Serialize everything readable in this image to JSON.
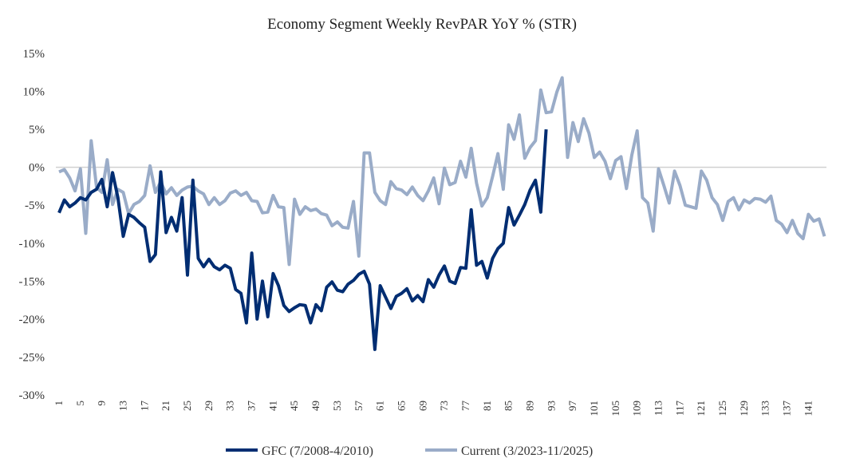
{
  "chart_data": {
    "type": "line",
    "title": "Economy Segment Weekly RevPAR YoY % (STR)",
    "xlabel": "",
    "ylabel": "",
    "ylim": [
      -30,
      15
    ],
    "yticks": [
      15,
      10,
      5,
      0,
      -5,
      -10,
      -15,
      -20,
      -25,
      -30
    ],
    "ytick_labels": [
      "15%",
      "10%",
      "5%",
      "0%",
      "-5%",
      "-10%",
      "-15%",
      "-20%",
      "-25%",
      "-30%"
    ],
    "x_range": [
      1,
      144
    ],
    "xtick_step": 4,
    "grid": "zero line only",
    "legend_position": "bottom",
    "series": [
      {
        "name": "GFC (7/2008-4/2010)",
        "color": "#002D72",
        "values": [
          -6.0,
          -4.3,
          -5.2,
          -4.7,
          -4.0,
          -4.3,
          -3.3,
          -2.9,
          -1.6,
          -5.2,
          -0.7,
          -4.0,
          -9.1,
          -6.2,
          -6.6,
          -7.3,
          -7.9,
          -12.4,
          -11.5,
          -0.6,
          -8.6,
          -6.6,
          -8.4,
          -4.0,
          -14.2,
          -1.7,
          -12.0,
          -13.1,
          -12.1,
          -13.1,
          -13.5,
          -12.9,
          -13.3,
          -16.1,
          -16.6,
          -20.5,
          -11.3,
          -20.0,
          -15.0,
          -19.7,
          -14.0,
          -15.6,
          -18.2,
          -19.0,
          -18.5,
          -18.1,
          -18.2,
          -20.5,
          -18.1,
          -18.9,
          -15.8,
          -15.1,
          -16.2,
          -16.4,
          -15.4,
          -14.9,
          -14.1,
          -13.7,
          -15.4,
          -24.0,
          -15.6,
          -17.1,
          -18.6,
          -17.0,
          -16.6,
          -16.0,
          -17.6,
          -16.9,
          -17.7,
          -14.8,
          -15.8,
          -14.2,
          -13.0,
          -15.0,
          -15.3,
          -13.2,
          -13.3,
          -5.6,
          -12.9,
          -12.4,
          -14.6,
          -12.0,
          -10.7,
          -10.0,
          -5.3,
          -7.6,
          -6.3,
          -4.9,
          -3.0,
          -1.7,
          -5.9,
          5.0
        ]
      },
      {
        "name": "Current (3/2023-11/2025)",
        "color": "#9AACC8",
        "values": [
          -0.6,
          -0.3,
          -1.4,
          -3.1,
          -0.2,
          -8.7,
          3.5,
          -2.6,
          -3.3,
          1.0,
          -4.9,
          -2.9,
          -3.3,
          -6.1,
          -4.9,
          -4.5,
          -3.7,
          0.2,
          -3.3,
          -1.9,
          -3.5,
          -2.7,
          -3.7,
          -3.0,
          -2.6,
          -2.5,
          -3.1,
          -3.5,
          -4.9,
          -4.0,
          -4.9,
          -4.4,
          -3.4,
          -3.1,
          -3.7,
          -3.3,
          -4.4,
          -4.5,
          -6.0,
          -5.9,
          -3.7,
          -5.2,
          -5.3,
          -12.8,
          -4.2,
          -6.2,
          -5.2,
          -5.7,
          -5.5,
          -6.1,
          -6.3,
          -7.7,
          -7.2,
          -7.9,
          -8.0,
          -4.5,
          -11.7,
          1.9,
          1.9,
          -3.3,
          -4.4,
          -4.9,
          -1.9,
          -2.8,
          -3.0,
          -3.6,
          -2.6,
          -3.7,
          -4.4,
          -3.1,
          -1.4,
          -4.8,
          -0.1,
          -2.3,
          -2.0,
          0.8,
          -1.3,
          2.5,
          -2.1,
          -5.1,
          -4.0,
          -1.2,
          1.8,
          -2.9,
          5.6,
          3.7,
          6.9,
          1.2,
          2.6,
          3.5,
          10.2,
          7.2,
          7.3,
          9.9,
          11.8,
          1.3,
          5.9,
          3.4,
          6.4,
          4.5,
          1.3,
          2.0,
          0.8,
          -1.5,
          0.9,
          1.4,
          -2.8,
          1.6,
          4.8,
          -4.0,
          -4.7,
          -8.4,
          -0.2,
          -2.4,
          -4.7,
          -0.5,
          -2.4,
          -5.0,
          -5.2,
          -5.4,
          -0.5,
          -1.7,
          -4.0,
          -4.9,
          -7.0,
          -4.5,
          -4.0,
          -5.6,
          -4.3,
          -4.7,
          -4.1,
          -4.2,
          -4.6,
          -3.8,
          -7.0,
          -7.5,
          -8.6,
          -7.0,
          -8.7,
          -9.4,
          -6.2,
          -7.1,
          -6.8,
          -9.1
        ]
      }
    ]
  }
}
